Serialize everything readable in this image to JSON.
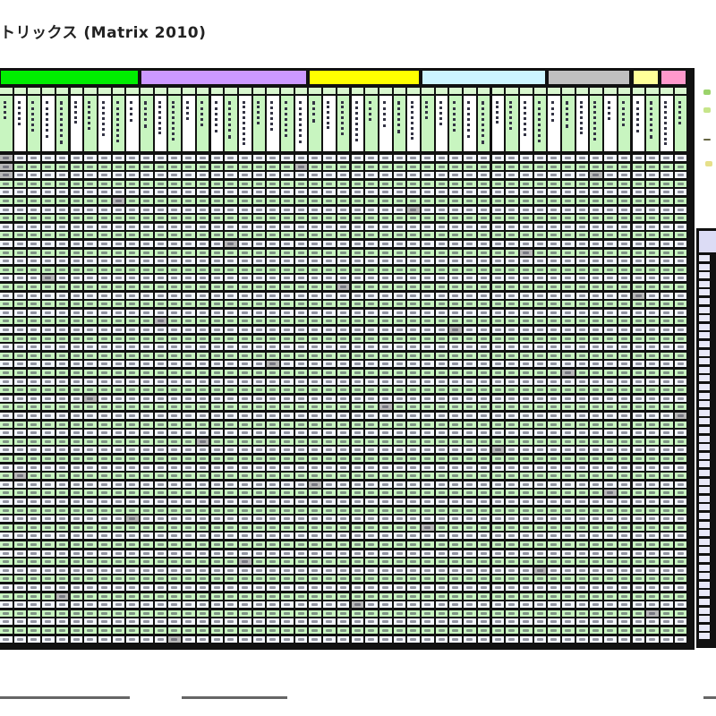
{
  "document": {
    "title": "トリックス (Matrix 2010)"
  },
  "matrix": {
    "groups": [
      {
        "columns": 10,
        "color": "#00ee00"
      },
      {
        "columns": 12,
        "color": "#cc99ff"
      },
      {
        "columns": 8,
        "color": "#ffff00"
      },
      {
        "columns": 9,
        "color": "#ccf5ff"
      },
      {
        "columns": 6,
        "color": "#c0c0c0"
      },
      {
        "columns": 2,
        "color": "#ffff99"
      },
      {
        "columns": 2,
        "color": "#ff99cc"
      }
    ],
    "colors": {
      "cell_green": "#c8f5c0",
      "cell_white": "#f4f8ff",
      "cell_gray": "#b8b8b8",
      "grid_line": "#111111",
      "side_panel": "#dcdcf5"
    }
  }
}
